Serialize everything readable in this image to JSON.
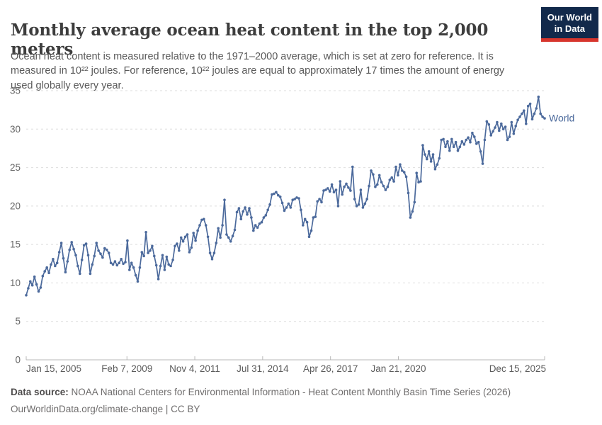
{
  "header": {
    "title": "Monthly average ocean heat content in the top 2,000 meters",
    "subtitle": "Ocean heat content is measured relative to the 1971–2000 average, which is set at zero for reference. It is measured in 10²² joules. For reference, 10²² joules are equal to approximately 17 times the amount of energy used globally every year.",
    "logo": {
      "line1": "Our World",
      "line2": "in Data"
    }
  },
  "chart_data": {
    "type": "line",
    "title": "Monthly average ocean heat content in the top 2,000 meters",
    "unit": "10²² joules",
    "ylim": [
      0,
      35
    ],
    "yticks": [
      0,
      5,
      10,
      15,
      20,
      25,
      30,
      35
    ],
    "grid": true,
    "legend_position": "end-of-line",
    "xticks": [
      {
        "label": "Jan 15, 2005",
        "t": 0,
        "anchor": "start"
      },
      {
        "label": "Feb 7, 2009",
        "t": 0.1943,
        "anchor": "middle"
      },
      {
        "label": "Nov 4, 2011",
        "t": 0.3252,
        "anchor": "middle"
      },
      {
        "label": "Jul 31, 2014",
        "t": 0.4561,
        "anchor": "middle"
      },
      {
        "label": "Apr 26, 2017",
        "t": 0.587,
        "anchor": "middle"
      },
      {
        "label": "Jan 21, 2020",
        "t": 0.7179,
        "anchor": "middle"
      },
      {
        "label": "Dec 15, 2025",
        "t": 1,
        "anchor": "end"
      }
    ],
    "x_start": "Jan 2005",
    "x_end": "Dec 2025",
    "x_interval": "monthly",
    "series": [
      {
        "name": "World",
        "color": "#4C6A9C",
        "values": [
          8.4,
          9.3,
          10.2,
          9.7,
          10.8,
          9.8,
          8.9,
          9.4,
          10.9,
          11.5,
          12.0,
          11.3,
          12.4,
          13.1,
          12.2,
          12.6,
          14.0,
          15.2,
          13.2,
          11.4,
          12.8,
          14.3,
          15.3,
          14.4,
          13.6,
          12.2,
          11.2,
          13.0,
          14.9,
          15.1,
          13.6,
          11.2,
          12.4,
          13.5,
          15.2,
          14.2,
          13.8,
          13.3,
          14.5,
          14.3,
          13.9,
          12.6,
          12.4,
          12.8,
          12.3,
          12.6,
          13.1,
          12.5,
          12.7,
          15.5,
          11.7,
          12.6,
          12.0,
          11.0,
          10.2,
          12.0,
          14.0,
          13.5,
          16.6,
          13.9,
          14.2,
          14.8,
          13.5,
          12.3,
          10.5,
          12.2,
          13.6,
          11.7,
          13.4,
          12.4,
          12.2,
          13.0,
          14.8,
          15.1,
          14.2,
          15.9,
          15.4,
          16.0,
          16.3,
          14.0,
          14.6,
          16.5,
          15.5,
          16.8,
          17.5,
          18.2,
          18.3,
          17.5,
          16.0,
          13.9,
          13.1,
          13.9,
          15.2,
          17.1,
          15.9,
          17.5,
          20.8,
          16.3,
          15.9,
          15.4,
          16.1,
          16.9,
          19.2,
          19.7,
          18.3,
          19.3,
          19.8,
          18.9,
          19.7,
          18.5,
          16.8,
          17.5,
          17.2,
          17.7,
          17.9,
          18.5,
          18.8,
          19.5,
          20.2,
          21.5,
          21.6,
          21.8,
          21.4,
          21.2,
          20.4,
          19.4,
          19.8,
          20.3,
          19.8,
          20.8,
          20.9,
          21.1,
          21.0,
          19.5,
          17.5,
          18.3,
          17.9,
          16.0,
          16.8,
          18.5,
          18.6,
          20.6,
          20.9,
          20.5,
          22.0,
          22.1,
          22.3,
          21.9,
          22.8,
          21.8,
          22.1,
          20.0,
          23.2,
          21.5,
          22.5,
          22.9,
          22.4,
          22.0,
          25.1,
          20.9,
          20.0,
          20.2,
          22.1,
          19.8,
          20.3,
          20.9,
          22.6,
          24.6,
          24.1,
          22.5,
          22.8,
          24.0,
          23.1,
          22.6,
          22.1,
          22.5,
          23.4,
          23.7,
          23.2,
          25.1,
          24.0,
          25.4,
          24.6,
          24.4,
          23.8,
          21.7,
          18.5,
          19.3,
          20.5,
          24.3,
          23.1,
          23.2,
          27.9,
          26.7,
          26.1,
          27.1,
          25.8,
          26.7,
          24.8,
          25.4,
          26.2,
          28.6,
          28.7,
          27.7,
          28.4,
          27.2,
          28.7,
          27.7,
          28.3,
          27.2,
          27.7,
          28.4,
          28.0,
          28.6,
          28.9,
          28.3,
          29.5,
          29.0,
          28.1,
          28.3,
          27.1,
          25.5,
          28.6,
          31.0,
          30.6,
          29.2,
          29.7,
          30.2,
          30.9,
          29.8,
          30.7,
          30.0,
          30.3,
          28.6,
          29.0,
          30.9,
          29.4,
          30.4,
          31.2,
          31.6,
          32.0,
          32.4,
          30.7,
          33.0,
          33.3,
          31.3,
          32.0,
          32.7,
          34.2,
          32.0,
          31.6,
          31.4
        ]
      }
    ]
  },
  "footer": {
    "source_label": "Data source:",
    "source_text": "NOAA National Centers for Environmental Information - Heat Content Monthly Basin Time Series (2026)",
    "license_text": "OurWorldinData.org/climate-change | CC BY"
  },
  "colors": {
    "line": "#4C6A9C",
    "grid": "#dedede",
    "axis": "#b8b8b8",
    "y_label": "#666666",
    "x_label": "#5b5b5b",
    "logo_bg": "#12294B",
    "logo_accent": "#D7352C"
  }
}
